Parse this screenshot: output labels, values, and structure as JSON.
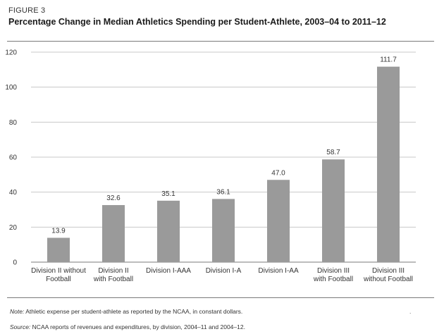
{
  "figure_label": "FIGURE 3",
  "note": {
    "label": "Note:",
    "text": "Athletic expense per student-athlete as reported by the NCAA, in constant dollars."
  },
  "source": {
    "label": "Source:",
    "text": "NCAA reports of revenues and expenditures, by division, 2004–11 and 2004–12."
  },
  "stray_mark": ".",
  "colors": {
    "bar": "#9a9a9a",
    "grid": "#c8c8c8",
    "axis": "#7a7a7a"
  },
  "chart_data": {
    "type": "bar",
    "title": "Percentage Change in Median Athletics Spending per Student-Athlete, 2003–04 to 2011–12",
    "xlabel": "",
    "ylabel": "",
    "ylim": [
      0,
      120
    ],
    "yticks": [
      0,
      20,
      40,
      60,
      80,
      100,
      120
    ],
    "grid": true,
    "categories": [
      [
        "Division II without",
        "Football"
      ],
      [
        "Division II",
        "with Football"
      ],
      [
        "Division I-AAA"
      ],
      [
        "Division I-A"
      ],
      [
        "Division I-AA"
      ],
      [
        "Division III",
        "with Football"
      ],
      [
        "Division III",
        "without Football"
      ]
    ],
    "values": [
      13.9,
      32.6,
      35.1,
      36.1,
      47.0,
      58.7,
      111.7
    ],
    "value_labels": [
      "13.9",
      "32.6",
      "35.1",
      "36.1",
      "47.0",
      "58.7",
      "111.7"
    ]
  }
}
